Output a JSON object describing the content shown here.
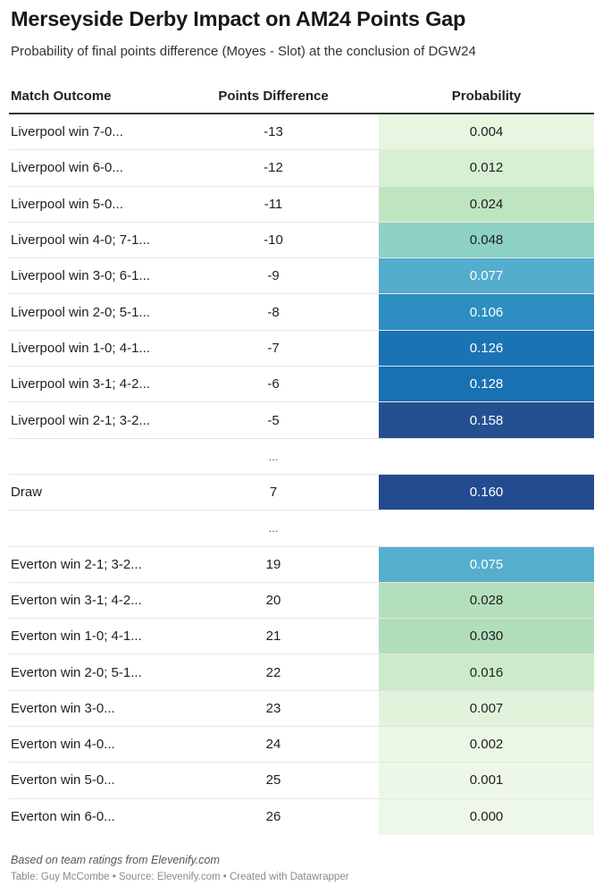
{
  "title": "Merseyside Derby Impact on AM24 Points Gap",
  "subtitle": "Probability of final points difference (Moyes - Slot) at the conclusion of DGW24",
  "chart_data": {
    "type": "table",
    "columns": [
      "Match Outcome",
      "Points Difference",
      "Probability"
    ],
    "rows": [
      {
        "outcome": "Liverpool win 7-0...",
        "diff": "-13",
        "prob": "0.004",
        "bg": "#e8f5e1",
        "fg": "#1f1f1f"
      },
      {
        "outcome": "Liverpool win 6-0...",
        "diff": "-12",
        "prob": "0.012",
        "bg": "#d7efd2",
        "fg": "#1f1f1f"
      },
      {
        "outcome": "Liverpool win 5-0...",
        "diff": "-11",
        "prob": "0.024",
        "bg": "#bfe4c0",
        "fg": "#1f1f1f"
      },
      {
        "outcome": "Liverpool win 4-0; 7-1...",
        "diff": "-10",
        "prob": "0.048",
        "bg": "#8dd0c4",
        "fg": "#1f1f1f"
      },
      {
        "outcome": "Liverpool win 3-0; 6-1...",
        "diff": "-9",
        "prob": "0.077",
        "bg": "#53adcd",
        "fg": "#ffffff"
      },
      {
        "outcome": "Liverpool win 2-0; 5-1...",
        "diff": "-8",
        "prob": "0.106",
        "bg": "#2d8ec2",
        "fg": "#ffffff"
      },
      {
        "outcome": "Liverpool win 1-0; 4-1...",
        "diff": "-7",
        "prob": "0.126",
        "bg": "#1b73b4",
        "fg": "#ffffff"
      },
      {
        "outcome": "Liverpool win 3-1; 4-2...",
        "diff": "-6",
        "prob": "0.128",
        "bg": "#1971b2",
        "fg": "#ffffff"
      },
      {
        "outcome": "Liverpool win 2-1; 3-2...",
        "diff": "-5",
        "prob": "0.158",
        "bg": "#245092",
        "fg": "#ffffff"
      },
      {
        "outcome": "",
        "diff": "...",
        "prob": "",
        "bg": "",
        "fg": "#1f1f1f",
        "ellipsis": true
      },
      {
        "outcome": "Draw",
        "diff": "7",
        "prob": "0.160",
        "bg": "#234b8f",
        "fg": "#ffffff"
      },
      {
        "outcome": "",
        "diff": "...",
        "prob": "",
        "bg": "",
        "fg": "#1f1f1f",
        "ellipsis": true
      },
      {
        "outcome": "Everton win 2-1; 3-2...",
        "diff": "19",
        "prob": "0.075",
        "bg": "#55afcc",
        "fg": "#ffffff"
      },
      {
        "outcome": "Everton win 3-1; 4-2...",
        "diff": "20",
        "prob": "0.028",
        "bg": "#b3dfbc",
        "fg": "#1f1f1f"
      },
      {
        "outcome": "Everton win 1-0; 4-1...",
        "diff": "21",
        "prob": "0.030",
        "bg": "#b0debb",
        "fg": "#1f1f1f"
      },
      {
        "outcome": "Everton win 2-0; 5-1...",
        "diff": "22",
        "prob": "0.016",
        "bg": "#cdeacb",
        "fg": "#1f1f1f"
      },
      {
        "outcome": "Everton win 3-0...",
        "diff": "23",
        "prob": "0.007",
        "bg": "#e2f3dc",
        "fg": "#1f1f1f"
      },
      {
        "outcome": "Everton win 4-0...",
        "diff": "24",
        "prob": "0.002",
        "bg": "#ebf7e5",
        "fg": "#1f1f1f"
      },
      {
        "outcome": "Everton win 5-0...",
        "diff": "25",
        "prob": "0.001",
        "bg": "#edf7e7",
        "fg": "#1f1f1f"
      },
      {
        "outcome": "Everton win 6-0...",
        "diff": "26",
        "prob": "0.000",
        "bg": "#eef8e8",
        "fg": "#1f1f1f"
      }
    ]
  },
  "notes": "Based on team ratings from Elevenify.com",
  "credits": "Table: Guy McCombe • Source: Elevenify.com • Created with Datawrapper"
}
